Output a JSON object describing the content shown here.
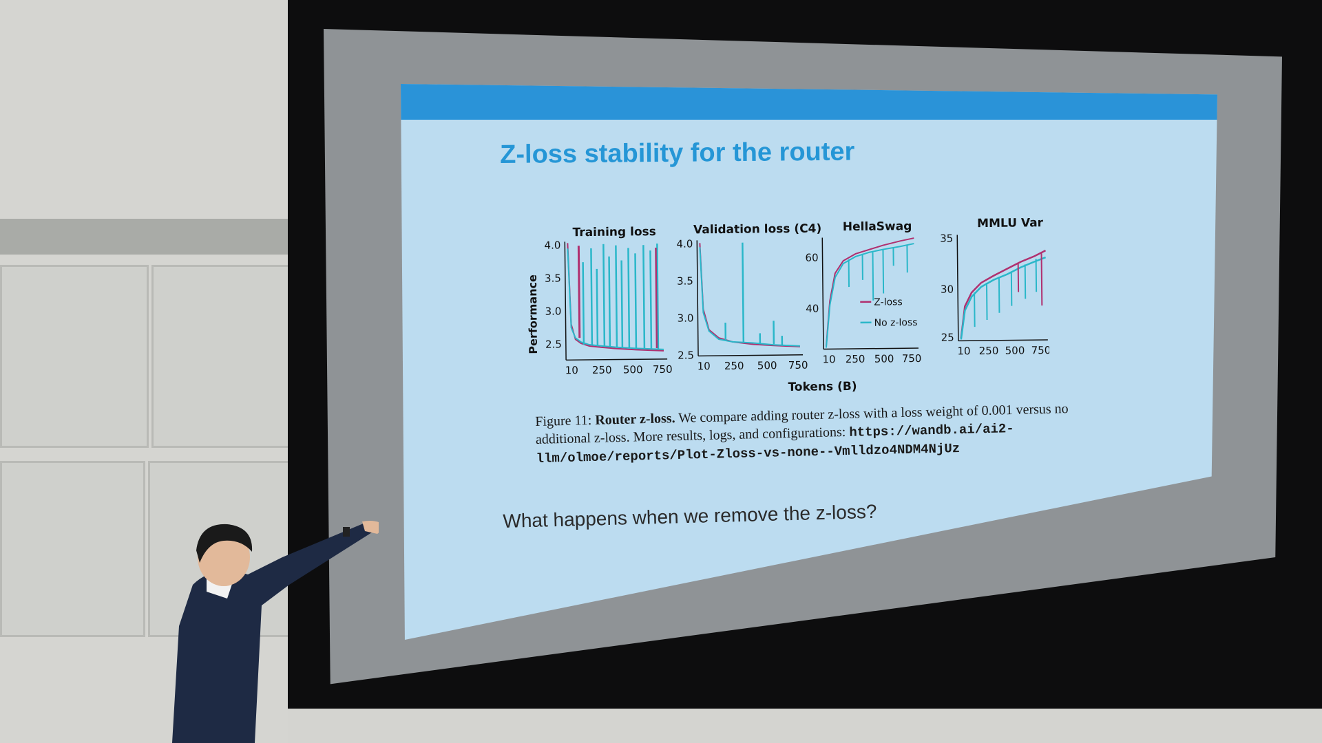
{
  "slide": {
    "title": "Z-loss stability for the router",
    "question": "What happens when we remove the z-loss?"
  },
  "figure": {
    "shared_ylabel": "Performance",
    "shared_xlabel": "Tokens (B)",
    "panels": [
      {
        "title": "Training loss",
        "yticks": [
          "4.0",
          "3.5",
          "3.0",
          "2.5"
        ],
        "xticks": [
          "10",
          "250",
          "500",
          "750"
        ]
      },
      {
        "title": "Validation loss (C4)",
        "yticks": [
          "4.0",
          "3.5",
          "3.0",
          "2.5"
        ],
        "xticks": [
          "10",
          "250",
          "500",
          "750"
        ]
      },
      {
        "title": "HellaSwag",
        "yticks": [
          "60",
          "40"
        ],
        "xticks": [
          "10",
          "250",
          "500",
          "750"
        ]
      },
      {
        "title": "MMLU Var",
        "yticks": [
          "35",
          "30",
          "25"
        ],
        "xticks": [
          "10",
          "250",
          "500",
          "750"
        ]
      }
    ],
    "legend": [
      {
        "label": "Z-loss",
        "color": "#b0306f"
      },
      {
        "label": "No z-loss",
        "color": "#2ab7c9"
      }
    ]
  },
  "caption": {
    "figure_label": "Figure 11:",
    "bold_part": "Router z-loss.",
    "text": "We compare adding router z-loss with a loss weight of 0.001 versus no additional z-loss. More results, logs, and configurations:",
    "url": "https://wandb.ai/ai2-llm/olmoe/reports/Plot-Zloss-vs-none--Vmlldzo4NDM4NjUz"
  },
  "colors": {
    "slide_bar": "#2a93d8",
    "title": "#2596d6",
    "slide_bg": "#bcdcf0",
    "zloss": "#b0306f",
    "no_zloss": "#2ab7c9"
  }
}
